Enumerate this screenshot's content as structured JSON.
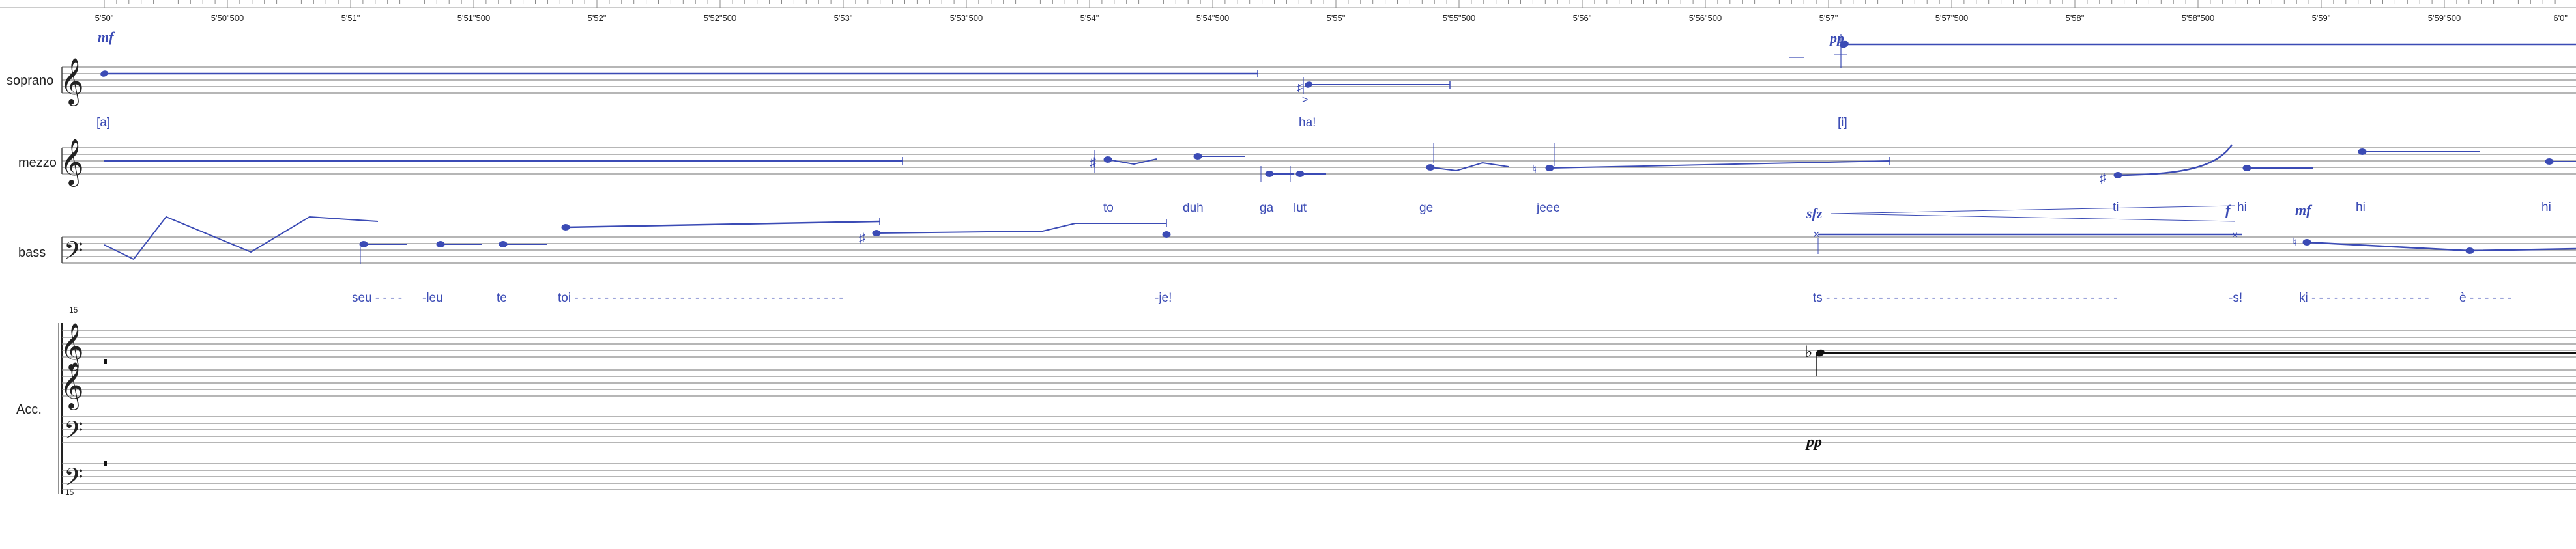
{
  "timeline": {
    "ticks": [
      "5'50\"",
      "5'50\"500",
      "5'51\"",
      "5'51\"500",
      "5'52\"",
      "5'52\"500",
      "5'53\"",
      "5'53\"500",
      "5'54\"",
      "5'54\"500",
      "5'55\"",
      "5'55\"500",
      "5'56\"",
      "5'56\"500",
      "5'57\"",
      "5'57\"500",
      "5'58\"",
      "5'58\"500",
      "5'59\"",
      "5'59\"500",
      "6'0\""
    ]
  },
  "staves": {
    "soprano": {
      "name": "soprano",
      "lyrics": [
        "[a]",
        "ha!",
        "[i]"
      ],
      "dynamics": [
        "mf",
        "pp"
      ]
    },
    "mezzo": {
      "name": "mezzo",
      "lyrics": [
        "to",
        "duh",
        "ga",
        "lut",
        "ge",
        "jeee",
        "ti",
        "hi",
        "hi",
        "hi"
      ],
      "dynamics": [
        "sfz",
        "f",
        "mf"
      ]
    },
    "bass": {
      "name": "bass",
      "lyrics": [
        "seu - - - -",
        "-leu",
        "te",
        "toi - - - - - - - - - - - - - - - - - - - - - - - - - - - - - - - - - - - -",
        "-je!",
        "ts - - - - - - - - - - - - - - - - - - - - - - - - - - - - - - - - - - - - - - -",
        "-s!",
        "ki - - - - - - - - - - - - - - - -",
        "è - - - - - -"
      ]
    },
    "accordion": {
      "name": "Acc.",
      "octave_marks": [
        "15",
        "15"
      ],
      "dynamics": [
        "pp"
      ]
    }
  },
  "colors": {
    "notes": "#3b4bb5",
    "staff": "#7a7a7a",
    "ink": "#111111"
  },
  "icons": {
    "treble": "treble-clef-icon",
    "bass": "bass-clef-icon",
    "sharp": "sharp-icon",
    "flat": "flat-icon"
  }
}
